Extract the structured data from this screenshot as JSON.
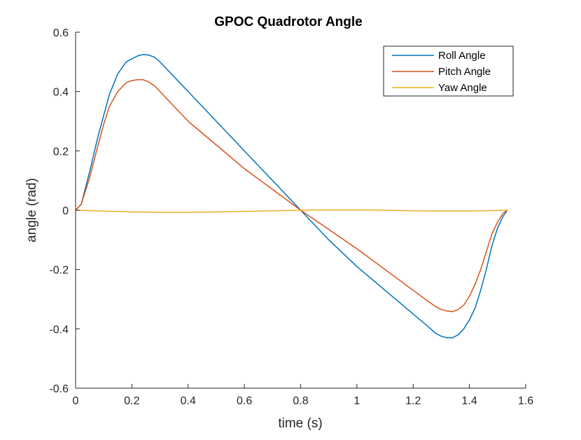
{
  "chart_data": {
    "type": "line",
    "title": "GPOC Quadrotor Angle",
    "xlabel": "time (s)",
    "ylabel": "angle (rad)",
    "xlim": [
      0,
      1.6
    ],
    "ylim": [
      -0.6,
      0.6
    ],
    "xticks": [
      0,
      0.2,
      0.4,
      0.6,
      0.8,
      1,
      1.2,
      1.4,
      1.6
    ],
    "xtick_labels": [
      "0",
      "0.2",
      "0.4",
      "0.6",
      "0.8",
      "1",
      "1.2",
      "1.4",
      "1.6"
    ],
    "yticks": [
      -0.6,
      -0.4,
      -0.2,
      0,
      0.2,
      0.4,
      0.6
    ],
    "ytick_labels": [
      "-0.6",
      "-0.4",
      "-0.2",
      "0",
      "0.2",
      "0.4",
      "0.6"
    ],
    "grid": false,
    "legend_position": "top-right",
    "series": [
      {
        "name": "Roll Angle",
        "color": "#0072BD",
        "x": [
          0,
          0.02,
          0.05,
          0.08,
          0.1,
          0.12,
          0.15,
          0.18,
          0.2,
          0.22,
          0.24,
          0.26,
          0.28,
          0.3,
          0.35,
          0.4,
          0.5,
          0.6,
          0.7,
          0.8,
          0.9,
          1.0,
          1.1,
          1.2,
          1.25,
          1.28,
          1.3,
          1.32,
          1.34,
          1.36,
          1.38,
          1.4,
          1.42,
          1.44,
          1.46,
          1.48,
          1.5,
          1.52,
          1.535
        ],
        "y": [
          0,
          0.02,
          0.13,
          0.25,
          0.32,
          0.39,
          0.46,
          0.5,
          0.51,
          0.52,
          0.525,
          0.523,
          0.516,
          0.5,
          0.45,
          0.4,
          0.3,
          0.2,
          0.1,
          0,
          -0.1,
          -0.19,
          -0.27,
          -0.35,
          -0.39,
          -0.415,
          -0.425,
          -0.43,
          -0.43,
          -0.42,
          -0.4,
          -0.37,
          -0.33,
          -0.27,
          -0.2,
          -0.12,
          -0.06,
          -0.02,
          0
        ]
      },
      {
        "name": "Pitch Angle",
        "color": "#D95319",
        "x": [
          0,
          0.02,
          0.05,
          0.08,
          0.1,
          0.12,
          0.15,
          0.18,
          0.2,
          0.22,
          0.24,
          0.26,
          0.28,
          0.3,
          0.35,
          0.4,
          0.5,
          0.6,
          0.7,
          0.8,
          0.9,
          1.0,
          1.1,
          1.2,
          1.25,
          1.28,
          1.3,
          1.32,
          1.34,
          1.36,
          1.38,
          1.4,
          1.42,
          1.44,
          1.46,
          1.48,
          1.5,
          1.52,
          1.535
        ],
        "y": [
          0,
          0.02,
          0.11,
          0.22,
          0.29,
          0.35,
          0.4,
          0.43,
          0.437,
          0.44,
          0.44,
          0.432,
          0.42,
          0.4,
          0.35,
          0.3,
          0.22,
          0.14,
          0.07,
          0,
          -0.065,
          -0.13,
          -0.2,
          -0.27,
          -0.305,
          -0.325,
          -0.335,
          -0.34,
          -0.342,
          -0.335,
          -0.32,
          -0.29,
          -0.25,
          -0.2,
          -0.14,
          -0.08,
          -0.04,
          -0.01,
          0
        ]
      },
      {
        "name": "Yaw Angle",
        "color": "#EDB120",
        "x": [
          0,
          0.1,
          0.2,
          0.3,
          0.4,
          0.5,
          0.6,
          0.7,
          0.8,
          0.9,
          1.0,
          1.1,
          1.2,
          1.3,
          1.4,
          1.5,
          1.535
        ],
        "y": [
          0,
          -0.003,
          -0.006,
          -0.007,
          -0.007,
          -0.006,
          -0.004,
          -0.002,
          0,
          0.001,
          0.001,
          0,
          -0.002,
          -0.003,
          -0.003,
          -0.001,
          0
        ]
      }
    ]
  }
}
